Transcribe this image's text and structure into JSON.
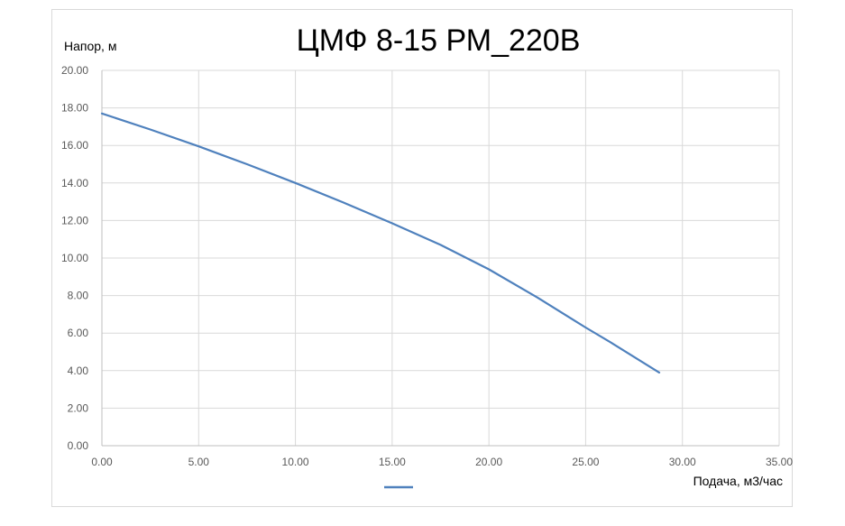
{
  "chart_data": {
    "type": "line",
    "title": "ЦМФ 8-15 РМ_220В",
    "xlabel": "Подача, м3/час",
    "ylabel": "Напор, м",
    "xlim": [
      0,
      35
    ],
    "ylim": [
      0,
      20
    ],
    "x_ticks": [
      "0.00",
      "5.00",
      "10.00",
      "15.00",
      "20.00",
      "25.00",
      "30.00",
      "35.00"
    ],
    "y_ticks": [
      "0.00",
      "2.00",
      "4.00",
      "6.00",
      "8.00",
      "10.00",
      "12.00",
      "14.00",
      "16.00",
      "18.00",
      "20.00"
    ],
    "grid": true,
    "legend_position": "bottom",
    "series": [
      {
        "color": "#4f81bd",
        "x": [
          0,
          2.5,
          5,
          7.5,
          10,
          12.5,
          15,
          17.5,
          20,
          22.5,
          25,
          26.3,
          28.8
        ],
        "y": [
          17.7,
          16.85,
          15.95,
          15.0,
          14.0,
          12.95,
          11.85,
          10.7,
          9.4,
          7.9,
          6.3,
          5.5,
          3.9
        ]
      }
    ]
  }
}
